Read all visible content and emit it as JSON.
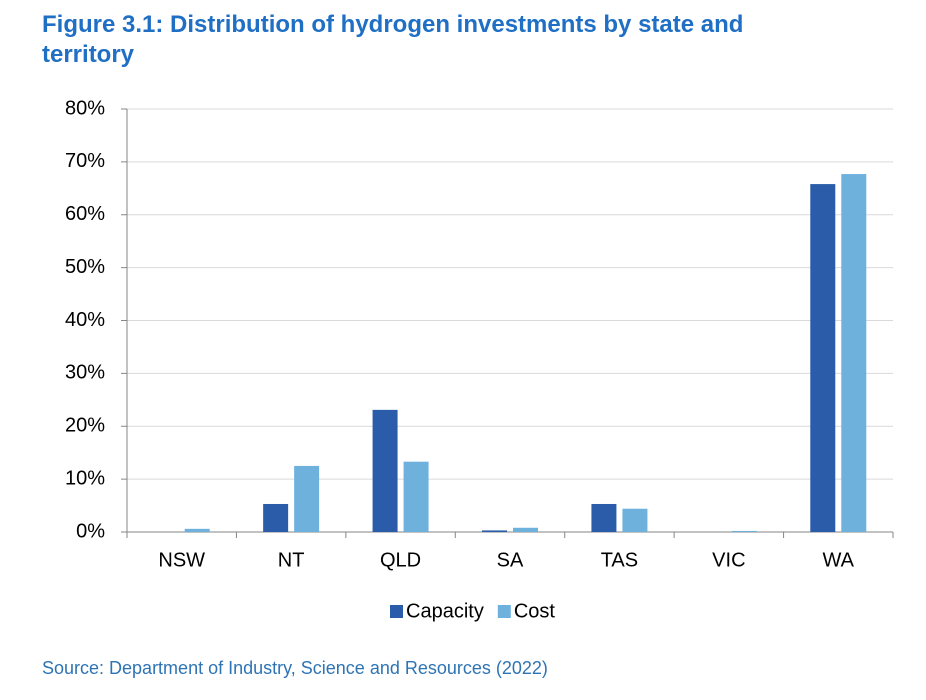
{
  "chart_data": {
    "type": "bar",
    "title": "Figure 3.1: Distribution of hydrogen investments by state and territory",
    "source": "Source: Department of Industry, Science and Resources (2022)",
    "categories": [
      "NSW",
      "NT",
      "QLD",
      "SA",
      "TAS",
      "VIC",
      "WA"
    ],
    "series": [
      {
        "name": "Capacity",
        "color": "#2a5caa",
        "values": [
          0,
          5.3,
          23.1,
          0.3,
          5.3,
          0,
          65.8
        ]
      },
      {
        "name": "Cost",
        "color": "#6fb1dd",
        "values": [
          0.6,
          12.5,
          13.3,
          0.8,
          4.4,
          0.2,
          67.7
        ]
      }
    ],
    "ylim": [
      0,
      80
    ],
    "yticks": [
      {
        "value": 0,
        "label": "0%"
      },
      {
        "value": 10,
        "label": "10%"
      },
      {
        "value": 20,
        "label": "20%"
      },
      {
        "value": 30,
        "label": "30%"
      },
      {
        "value": 40,
        "label": "40%"
      },
      {
        "value": 50,
        "label": "50%"
      },
      {
        "value": 60,
        "label": "60%"
      },
      {
        "value": 70,
        "label": "70%"
      },
      {
        "value": 80,
        "label": "80%"
      }
    ],
    "grid": true,
    "legend": "bottom"
  }
}
